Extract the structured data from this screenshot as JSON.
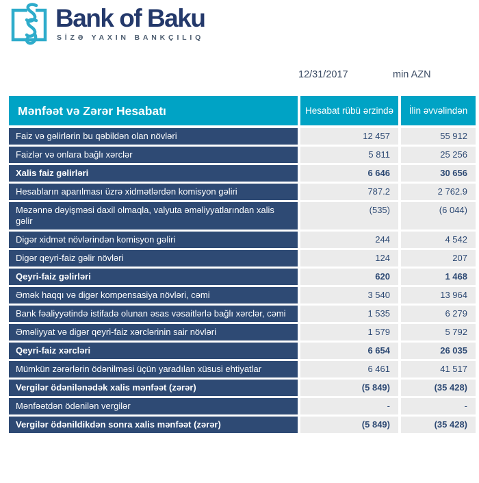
{
  "logo": {
    "name": "Bank of Baku",
    "tagline": "SİZƏ YAXIN BANKÇILIQ",
    "icon": "chain-link-icon"
  },
  "meta": {
    "date": "12/31/2017",
    "unit": "min AZN"
  },
  "colors": {
    "header_teal": "#00A3C5",
    "row_navy": "#2E4A74",
    "value_bg": "#EBEBEB",
    "value_text": "#2E4A74",
    "logo_teal": "#2EACCB",
    "logo_text": "#24396B"
  },
  "table": {
    "title": "Mənfəət və Zərər Hesabatı",
    "columns": [
      "Hesabat rübü ərzində",
      "İlin əvvəlindən"
    ],
    "rows": [
      {
        "label": "Faiz və gəlirlərin bu qəbildən olan növləri",
        "quarter": "12 457",
        "ytd": "55 912",
        "bold": false
      },
      {
        "label": "Faizlər və onlara bağlı xərclər",
        "quarter": "5 811",
        "ytd": "25 256",
        "bold": false
      },
      {
        "label": "Xalis faiz gəlirləri",
        "quarter": "6 646",
        "ytd": "30 656",
        "bold": true
      },
      {
        "label": "Hesabların aparılması üzrə xidmətlərdən komisyon gəliri",
        "quarter": "787.2",
        "ytd": "2 762.9",
        "bold": false
      },
      {
        "label": "Məzənnə dəyişməsi daxil olmaqla, valyuta əməliyyatlarından xalis gəlir",
        "quarter": "(535)",
        "ytd": "(6 044)",
        "bold": false
      },
      {
        "label": "Digər xidmət növlərindən komisyon gəliri",
        "quarter": "244",
        "ytd": "4 542",
        "bold": false
      },
      {
        "label": "Digər qeyri-faiz gəlir növləri",
        "quarter": "124",
        "ytd": "207",
        "bold": false
      },
      {
        "label": "Qeyri-faiz gəlirləri",
        "quarter": "620",
        "ytd": "1 468",
        "bold": true
      },
      {
        "label": "Əmək haqqı və digər kompensasiya növləri, cəmi",
        "quarter": "3 540",
        "ytd": "13 964",
        "bold": false
      },
      {
        "label": "Bank fəaliyyətində istifadə olunan əsas vəsaitlərlə bağlı xərclər, cəmi",
        "quarter": "1 535",
        "ytd": "6 279",
        "bold": false
      },
      {
        "label": "Əməliyyat və digər qeyri-faiz xərclərinin sair növləri",
        "quarter": "1 579",
        "ytd": "5 792",
        "bold": false
      },
      {
        "label": "Qeyri-faiz xərcləri",
        "quarter": "6 654",
        "ytd": "26 035",
        "bold": true
      },
      {
        "label": "Mümkün zərərlərin ödənilməsi üçün yaradılan xüsusi ehtiyatlar",
        "quarter": "6 461",
        "ytd": "41 517",
        "bold": false
      },
      {
        "label": "Vergilər ödənilənədək xalis mənfəət (zərər)",
        "quarter": "(5 849)",
        "ytd": "(35 428)",
        "bold": true
      },
      {
        "label": "Mənfəətdən ödənilən vergilər",
        "quarter": "-",
        "ytd": "-",
        "bold": false
      },
      {
        "label": "Vergilər ödənildikdən sonra xalis mənfəət (zərər)",
        "quarter": "(5 849)",
        "ytd": "(35 428)",
        "bold": true
      }
    ]
  }
}
